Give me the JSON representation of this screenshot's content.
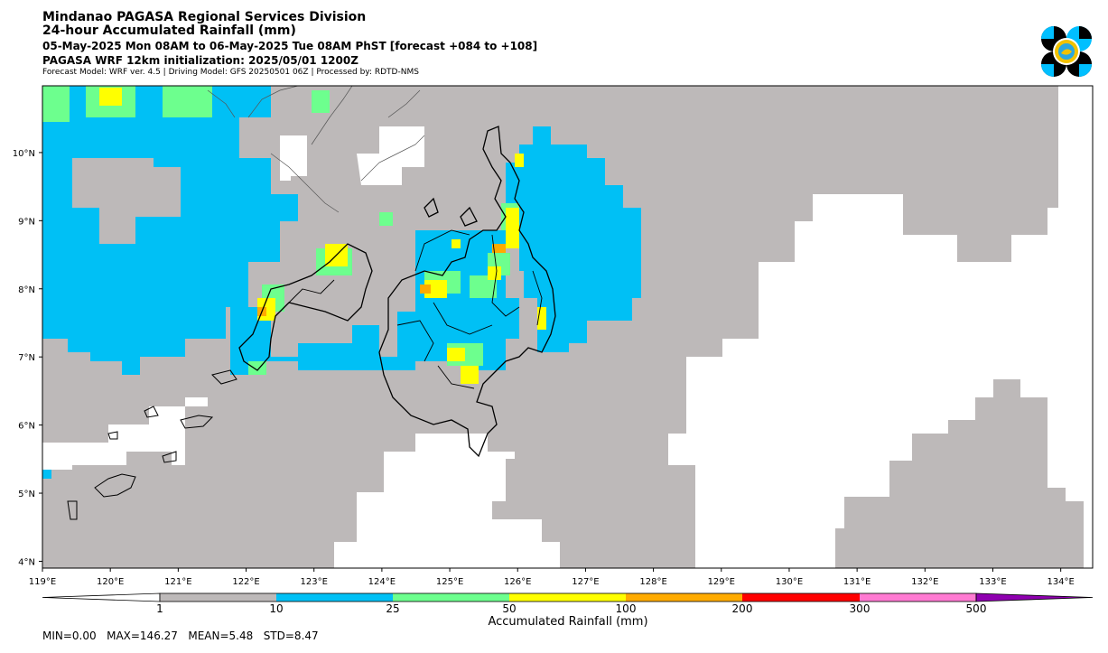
{
  "header": {
    "title": "Mindanao PAGASA Regional Services Division",
    "subtitle": "24-hour Accumulated Rainfall (mm)",
    "period": "05-May-2025 Mon 08AM to 06-May-2025 Tue 08AM PhST [forecast +084 to +108]",
    "model_init": "PAGASA WRF 12km initialization: 2025/05/01 1200Z",
    "model_info": "Forecast Model: WRF ver. 4.5 | Driving Model: GFS 20250501 06Z | Processed by: RDTD-NMS"
  },
  "logo": {
    "icon": "pagasa-logo-icon",
    "colors": [
      "#00bfff",
      "#000000",
      "#f2c200"
    ]
  },
  "map": {
    "lon_range": [
      119,
      134.47
    ],
    "lat_range": [
      3.9,
      10.98
    ],
    "lon_ticks": [
      "119°E",
      "120°E",
      "121°E",
      "122°E",
      "123°E",
      "124°E",
      "125°E",
      "126°E",
      "127°E",
      "128°E",
      "129°E",
      "130°E",
      "131°E",
      "132°E",
      "133°E",
      "134°E"
    ],
    "lat_ticks": [
      "4°N",
      "5°N",
      "6°N",
      "7°N",
      "8°N",
      "9°N",
      "10°N"
    ],
    "background_color": "#bdb9b9",
    "no_rain_color": "#ffffff"
  },
  "colorbar": {
    "title": "Accumulated Rainfall (mm)",
    "ticks": [
      "1",
      "10",
      "25",
      "50",
      "100",
      "200",
      "300",
      "500"
    ],
    "colors": [
      "#ffffff",
      "#bdb9b9",
      "#00c0f5",
      "#6dff8e",
      "#ffff00",
      "#ffab00",
      "#ff0000",
      "#ff7ad2",
      "#8f00b0"
    ]
  },
  "stats": {
    "text": "MIN=0.00   MAX=146.27   MEAN=5.48   STD=8.47"
  }
}
